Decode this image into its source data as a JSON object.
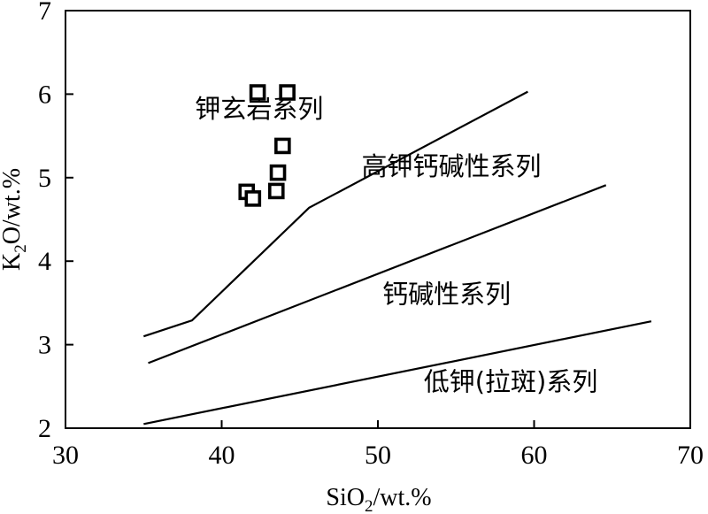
{
  "chart_data": {
    "type": "scatter",
    "title": "",
    "xlabel": {
      "base": "SiO",
      "sub": "2",
      "unit": "/wt.%"
    },
    "ylabel": {
      "base": "K",
      "sub": "2",
      "unit": "O/wt.%"
    },
    "xlim": [
      30,
      70
    ],
    "ylim": [
      2,
      7
    ],
    "x_ticks": [
      30,
      40,
      50,
      60,
      70
    ],
    "y_ticks": [
      2,
      3,
      4,
      5,
      6,
      7
    ],
    "grid": false,
    "series": [
      {
        "points": [
          {
            "x": 42.3,
            "y": 6.02
          },
          {
            "x": 44.2,
            "y": 6.02
          },
          {
            "x": 43.9,
            "y": 5.38
          },
          {
            "x": 43.6,
            "y": 5.06
          },
          {
            "x": 41.6,
            "y": 4.83
          },
          {
            "x": 42.0,
            "y": 4.75
          },
          {
            "x": 43.5,
            "y": 4.84
          }
        ]
      }
    ],
    "boundaries": [
      {
        "points": [
          [
            35.0,
            3.1
          ],
          [
            38.1,
            3.29
          ],
          [
            45.6,
            4.64
          ],
          [
            59.6,
            6.03
          ]
        ]
      },
      {
        "points": [
          [
            35.3,
            2.78
          ],
          [
            64.6,
            4.91
          ]
        ]
      },
      {
        "points": [
          [
            35.0,
            2.05
          ],
          [
            67.5,
            3.28
          ]
        ]
      }
    ],
    "region_labels": [
      {
        "text": "钾玄岩系列",
        "x": 42.4,
        "y": 5.72
      },
      {
        "text": "高钾钙碱性系列",
        "x": 54.7,
        "y": 5.03
      },
      {
        "text": "钙碱性系列",
        "x": 54.4,
        "y": 3.5
      },
      {
        "text": "低钾(拉斑)系列",
        "x": 58.5,
        "y": 2.45
      }
    ]
  }
}
